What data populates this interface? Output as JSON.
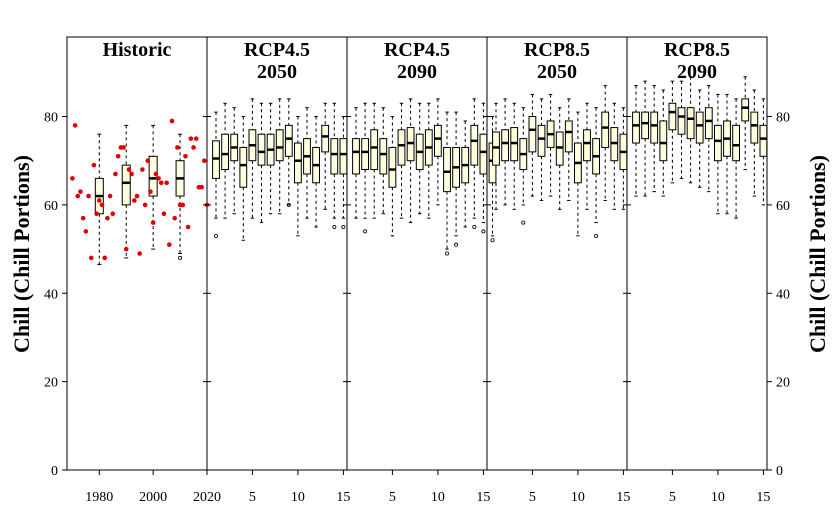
{
  "chart_data": {
    "type": "boxplot",
    "ylabel_left": "Chill (Chill Portions)",
    "ylabel_right": "Chill (Chill Portions)",
    "ylim": [
      0,
      98
    ],
    "yticks": [
      "0",
      "20",
      "40",
      "60",
      "80"
    ],
    "colors": {
      "box_fill": "#ffffe0",
      "points": "#e00000",
      "line": "#000000"
    },
    "historic": {
      "title": "Historic",
      "xlim": [
        1968,
        2020
      ],
      "xticks": [
        "1980",
        "2000",
        "2020"
      ],
      "xtick_values": [
        1980,
        2000,
        2020
      ],
      "points": [
        [
          1970,
          66
        ],
        [
          1971,
          78
        ],
        [
          1972,
          62
        ],
        [
          1973,
          63
        ],
        [
          1974,
          57
        ],
        [
          1975,
          54
        ],
        [
          1976,
          62
        ],
        [
          1977,
          48
        ],
        [
          1978,
          69
        ],
        [
          1979,
          58
        ],
        [
          1980,
          61
        ],
        [
          1981,
          60
        ],
        [
          1982,
          48
        ],
        [
          1983,
          57
        ],
        [
          1984,
          62
        ],
        [
          1985,
          58
        ],
        [
          1986,
          67
        ],
        [
          1987,
          71
        ],
        [
          1988,
          73
        ],
        [
          1989,
          73
        ],
        [
          1990,
          50
        ],
        [
          1991,
          68
        ],
        [
          1992,
          67
        ],
        [
          1993,
          61
        ],
        [
          1994,
          62
        ],
        [
          1995,
          49
        ],
        [
          1996,
          68
        ],
        [
          1997,
          60
        ],
        [
          1998,
          70
        ],
        [
          1999,
          63
        ],
        [
          2000,
          56
        ],
        [
          2001,
          67
        ],
        [
          2002,
          66
        ],
        [
          2003,
          65
        ],
        [
          2004,
          58
        ],
        [
          2005,
          65
        ],
        [
          2006,
          51
        ],
        [
          2007,
          79
        ],
        [
          2008,
          57
        ],
        [
          2009,
          73
        ],
        [
          2010,
          60
        ],
        [
          2011,
          60
        ],
        [
          2012,
          71
        ],
        [
          2013,
          55
        ],
        [
          2014,
          75
        ],
        [
          2015,
          73
        ],
        [
          2016,
          75
        ],
        [
          2017,
          64
        ],
        [
          2018,
          64
        ],
        [
          2019,
          70
        ],
        [
          2020,
          60
        ]
      ],
      "boxes": [
        {
          "x": 1980,
          "lower": 46.5,
          "q1": 58,
          "median": 62,
          "q3": 66,
          "upper": 76,
          "outliers": []
        },
        {
          "x": 1990,
          "lower": 48,
          "q1": 60,
          "median": 65,
          "q3": 69,
          "upper": 78,
          "outliers": []
        },
        {
          "x": 2000,
          "lower": 50,
          "q1": 62,
          "median": 66,
          "q3": 71,
          "upper": 78,
          "outliers": []
        },
        {
          "x": 2010,
          "lower": 49,
          "q1": 62,
          "median": 66,
          "q3": 70,
          "upper": 76,
          "outliers": [
            48
          ]
        }
      ]
    },
    "scenarios": [
      {
        "title_line1": "RCP4.5",
        "title_line2": "2050",
        "xticks": [
          "5",
          "10",
          "15"
        ],
        "boxes": [
          {
            "lower": 57,
            "q1": 66,
            "median": 70.5,
            "q3": 74.5,
            "upper": 81,
            "outliers": [
              53
            ]
          },
          {
            "lower": 57,
            "q1": 68,
            "median": 71.5,
            "q3": 76,
            "upper": 83,
            "outliers": []
          },
          {
            "lower": 58,
            "q1": 70,
            "median": 73,
            "q3": 76,
            "upper": 82,
            "outliers": []
          },
          {
            "lower": 52,
            "q1": 64,
            "median": 69,
            "q3": 73,
            "upper": 80,
            "outliers": []
          },
          {
            "lower": 57,
            "q1": 70,
            "median": 73.5,
            "q3": 77,
            "upper": 84,
            "outliers": []
          },
          {
            "lower": 56,
            "q1": 69,
            "median": 72,
            "q3": 76,
            "upper": 83,
            "outliers": []
          },
          {
            "lower": 58,
            "q1": 69,
            "median": 72.5,
            "q3": 76,
            "upper": 83,
            "outliers": []
          },
          {
            "lower": 58,
            "q1": 70,
            "median": 73,
            "q3": 77,
            "upper": 84,
            "outliers": []
          },
          {
            "lower": 60,
            "q1": 71,
            "median": 75,
            "q3": 78,
            "upper": 84,
            "outliers": [
              60
            ]
          },
          {
            "lower": 53,
            "q1": 65,
            "median": 70,
            "q3": 74,
            "upper": 80,
            "outliers": []
          },
          {
            "lower": 57,
            "q1": 67,
            "median": 71,
            "q3": 75,
            "upper": 82,
            "outliers": []
          },
          {
            "lower": 55,
            "q1": 65,
            "median": 69,
            "q3": 73,
            "upper": 80,
            "outliers": []
          },
          {
            "lower": 59,
            "q1": 72,
            "median": 75.5,
            "q3": 78,
            "upper": 83,
            "outliers": []
          },
          {
            "lower": 57,
            "q1": 67,
            "median": 71.5,
            "q3": 75,
            "upper": 83,
            "outliers": [
              55
            ]
          },
          {
            "lower": 57,
            "q1": 67,
            "median": 71.5,
            "q3": 75,
            "upper": 80,
            "outliers": [
              55
            ]
          }
        ]
      },
      {
        "title_line1": "RCP4.5",
        "title_line2": "2090",
        "xticks": [
          "5",
          "10",
          "15"
        ],
        "boxes": [
          {
            "lower": 57,
            "q1": 67,
            "median": 72,
            "q3": 75,
            "upper": 82,
            "outliers": []
          },
          {
            "lower": 57,
            "q1": 68,
            "median": 72,
            "q3": 75,
            "upper": 83,
            "outliers": [
              54
            ]
          },
          {
            "lower": 57,
            "q1": 68,
            "median": 73,
            "q3": 77,
            "upper": 83,
            "outliers": []
          },
          {
            "lower": 58,
            "q1": 67,
            "median": 71.5,
            "q3": 75,
            "upper": 82,
            "outliers": []
          },
          {
            "lower": 53,
            "q1": 64,
            "median": 68,
            "q3": 73,
            "upper": 80,
            "outliers": []
          },
          {
            "lower": 57,
            "q1": 69,
            "median": 73.5,
            "q3": 77,
            "upper": 83,
            "outliers": []
          },
          {
            "lower": 56,
            "q1": 70,
            "median": 74,
            "q3": 77.5,
            "upper": 84,
            "outliers": []
          },
          {
            "lower": 58,
            "q1": 68,
            "median": 72,
            "q3": 76,
            "upper": 83,
            "outliers": []
          },
          {
            "lower": 57,
            "q1": 69,
            "median": 73,
            "q3": 77,
            "upper": 83,
            "outliers": []
          },
          {
            "lower": 60,
            "q1": 71,
            "median": 75,
            "q3": 78,
            "upper": 84,
            "outliers": []
          },
          {
            "lower": 50,
            "q1": 63,
            "median": 67.5,
            "q3": 73,
            "upper": 81,
            "outliers": [
              49
            ]
          },
          {
            "lower": 53,
            "q1": 64,
            "median": 68.5,
            "q3": 73,
            "upper": 81,
            "outliers": [
              51
            ]
          },
          {
            "lower": 55,
            "q1": 65,
            "median": 69,
            "q3": 73,
            "upper": 79,
            "outliers": []
          },
          {
            "lower": 57,
            "q1": 69,
            "median": 74.5,
            "q3": 78,
            "upper": 84,
            "outliers": [
              55
            ]
          },
          {
            "lower": 56,
            "q1": 67,
            "median": 72,
            "q3": 76,
            "upper": 83,
            "outliers": [
              54
            ]
          },
          {
            "lower": 53,
            "q1": 65,
            "median": 70,
            "q3": 74,
            "upper": 80,
            "outliers": [
              52
            ]
          }
        ]
      },
      {
        "title_line1": "RCP8.5",
        "title_line2": "2050",
        "xticks": [
          "5",
          "10",
          "15"
        ],
        "boxes": [
          {
            "lower": 59,
            "q1": 69,
            "median": 73,
            "q3": 76.5,
            "upper": 83,
            "outliers": []
          },
          {
            "lower": 60,
            "q1": 70,
            "median": 74,
            "q3": 77,
            "upper": 84,
            "outliers": []
          },
          {
            "lower": 59,
            "q1": 70,
            "median": 74,
            "q3": 77.5,
            "upper": 83,
            "outliers": []
          },
          {
            "lower": 60,
            "q1": 68,
            "median": 71.5,
            "q3": 75,
            "upper": 82,
            "outliers": [
              56
            ]
          },
          {
            "lower": 62,
            "q1": 72,
            "median": 77,
            "q3": 80,
            "upper": 85,
            "outliers": []
          },
          {
            "lower": 61,
            "q1": 71,
            "median": 75,
            "q3": 78,
            "upper": 84,
            "outliers": []
          },
          {
            "lower": 62,
            "q1": 73,
            "median": 76,
            "q3": 79,
            "upper": 85,
            "outliers": []
          },
          {
            "lower": 59,
            "q1": 69,
            "median": 73,
            "q3": 76.5,
            "upper": 82,
            "outliers": []
          },
          {
            "lower": 61,
            "q1": 72,
            "median": 76.5,
            "q3": 79,
            "upper": 84,
            "outliers": []
          },
          {
            "lower": 53,
            "q1": 65,
            "median": 69.5,
            "q3": 74,
            "upper": 81,
            "outliers": []
          },
          {
            "lower": 59,
            "q1": 70,
            "median": 74,
            "q3": 77,
            "upper": 83,
            "outliers": []
          },
          {
            "lower": 56,
            "q1": 67,
            "median": 71,
            "q3": 75,
            "upper": 82,
            "outliers": [
              53
            ]
          },
          {
            "lower": 61,
            "q1": 73,
            "median": 77.5,
            "q3": 81,
            "upper": 87,
            "outliers": []
          },
          {
            "lower": 59,
            "q1": 70,
            "median": 74,
            "q3": 77.5,
            "upper": 83,
            "outliers": []
          },
          {
            "lower": 59,
            "q1": 68,
            "median": 72,
            "q3": 76,
            "upper": 82,
            "outliers": []
          }
        ]
      },
      {
        "title_line1": "RCP8.5",
        "title_line2": "2090",
        "xticks": [
          "5",
          "10",
          "15"
        ],
        "boxes": [
          {
            "lower": 62,
            "q1": 74,
            "median": 78,
            "q3": 81,
            "upper": 87,
            "outliers": []
          },
          {
            "lower": 62,
            "q1": 75,
            "median": 78.5,
            "q3": 81,
            "upper": 88,
            "outliers": []
          },
          {
            "lower": 63,
            "q1": 74,
            "median": 78,
            "q3": 81,
            "upper": 87,
            "outliers": []
          },
          {
            "lower": 62,
            "q1": 70,
            "median": 74,
            "q3": 79,
            "upper": 86,
            "outliers": []
          },
          {
            "lower": 65,
            "q1": 77,
            "median": 81,
            "q3": 83,
            "upper": 88,
            "outliers": []
          },
          {
            "lower": 66,
            "q1": 76,
            "median": 80,
            "q3": 82,
            "upper": 88,
            "outliers": []
          },
          {
            "lower": 65,
            "q1": 75,
            "median": 79.5,
            "q3": 82,
            "upper": 89,
            "outliers": []
          },
          {
            "lower": 64,
            "q1": 74,
            "median": 78,
            "q3": 81,
            "upper": 86,
            "outliers": []
          },
          {
            "lower": 63,
            "q1": 75,
            "median": 79,
            "q3": 82,
            "upper": 87,
            "outliers": []
          },
          {
            "lower": 58,
            "q1": 70,
            "median": 74.5,
            "q3": 78,
            "upper": 85,
            "outliers": []
          },
          {
            "lower": 58,
            "q1": 71,
            "median": 75,
            "q3": 79,
            "upper": 85,
            "outliers": []
          },
          {
            "lower": 57,
            "q1": 70,
            "median": 73.5,
            "q3": 78,
            "upper": 84,
            "outliers": []
          },
          {
            "lower": 68,
            "q1": 79,
            "median": 82,
            "q3": 84,
            "upper": 89,
            "outliers": []
          },
          {
            "lower": 62,
            "q1": 74,
            "median": 78,
            "q3": 81,
            "upper": 86,
            "outliers": []
          },
          {
            "lower": 60,
            "q1": 71,
            "median": 75,
            "q3": 78,
            "upper": 84,
            "outliers": []
          }
        ]
      }
    ]
  }
}
